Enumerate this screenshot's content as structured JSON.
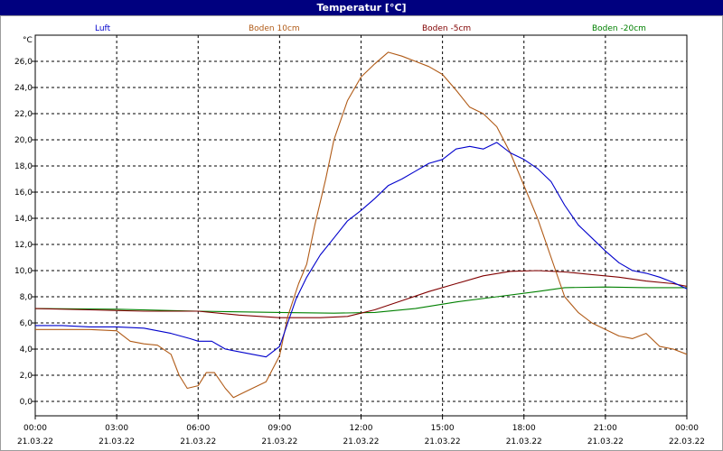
{
  "chart_data": {
    "type": "line",
    "title": "Temperatur [°C]",
    "y_unit_label": "°C",
    "ylim": [
      -1.1,
      28.0
    ],
    "y_ticks": [
      "0,0",
      "2,0",
      "4,0",
      "6,0",
      "8,0",
      "10,0",
      "12,0",
      "14,0",
      "16,0",
      "18,0",
      "20,0",
      "22,0",
      "24,0",
      "26,0"
    ],
    "x_range_hours": [
      0,
      24
    ],
    "x_ticks": [
      {
        "time": "00:00",
        "date": "21.03.22"
      },
      {
        "time": "03:00",
        "date": "21.03.22"
      },
      {
        "time": "06:00",
        "date": "21.03.22"
      },
      {
        "time": "09:00",
        "date": "21.03.22"
      },
      {
        "time": "12:00",
        "date": "21.03.22"
      },
      {
        "time": "15:00",
        "date": "21.03.22"
      },
      {
        "time": "18:00",
        "date": "21.03.22"
      },
      {
        "time": "21:00",
        "date": "21.03.22"
      },
      {
        "time": "00:00",
        "date": "22.03.22"
      }
    ],
    "grid": true,
    "legend_position": "top",
    "series": [
      {
        "name": "Luft",
        "color": "#0000cc",
        "points": [
          [
            0,
            5.8
          ],
          [
            1,
            5.8
          ],
          [
            2,
            5.7
          ],
          [
            3,
            5.7
          ],
          [
            4,
            5.6
          ],
          [
            5,
            5.2
          ],
          [
            5.7,
            4.8
          ],
          [
            6,
            4.6
          ],
          [
            6.5,
            4.6
          ],
          [
            7,
            4.0
          ],
          [
            7.5,
            3.8
          ],
          [
            8,
            3.6
          ],
          [
            8.5,
            3.4
          ],
          [
            9,
            4.2
          ],
          [
            9.3,
            6.0
          ],
          [
            9.6,
            7.8
          ],
          [
            10,
            9.5
          ],
          [
            10.5,
            11.2
          ],
          [
            11,
            12.5
          ],
          [
            11.5,
            13.8
          ],
          [
            12,
            14.6
          ],
          [
            12.5,
            15.5
          ],
          [
            13,
            16.5
          ],
          [
            13.5,
            17.0
          ],
          [
            14,
            17.6
          ],
          [
            14.5,
            18.2
          ],
          [
            15,
            18.5
          ],
          [
            15.5,
            19.3
          ],
          [
            16,
            19.5
          ],
          [
            16.5,
            19.3
          ],
          [
            17,
            19.8
          ],
          [
            17.5,
            19.0
          ],
          [
            18,
            18.5
          ],
          [
            18.5,
            17.8
          ],
          [
            19,
            16.8
          ],
          [
            19.5,
            15.0
          ],
          [
            20,
            13.5
          ],
          [
            20.5,
            12.5
          ],
          [
            21,
            11.5
          ],
          [
            21.5,
            10.6
          ],
          [
            22,
            10.0
          ],
          [
            22.5,
            9.8
          ],
          [
            23,
            9.5
          ],
          [
            23.5,
            9.1
          ],
          [
            24,
            8.6
          ]
        ]
      },
      {
        "name": "Boden 10cm",
        "color": "#b05a16",
        "points": [
          [
            0,
            5.5
          ],
          [
            1,
            5.5
          ],
          [
            2,
            5.5
          ],
          [
            3,
            5.4
          ],
          [
            3.5,
            4.6
          ],
          [
            4,
            4.4
          ],
          [
            4.5,
            4.3
          ],
          [
            5,
            3.6
          ],
          [
            5.3,
            2.0
          ],
          [
            5.6,
            1.0
          ],
          [
            6,
            1.2
          ],
          [
            6.3,
            2.2
          ],
          [
            6.6,
            2.2
          ],
          [
            7,
            1.0
          ],
          [
            7.3,
            0.3
          ],
          [
            7.7,
            0.7
          ],
          [
            8,
            1.0
          ],
          [
            8.5,
            1.5
          ],
          [
            9,
            3.5
          ],
          [
            9.3,
            6.5
          ],
          [
            9.7,
            9.0
          ],
          [
            10,
            10.5
          ],
          [
            10.3,
            13.5
          ],
          [
            10.7,
            17.0
          ],
          [
            11,
            20.0
          ],
          [
            11.5,
            23.0
          ],
          [
            12,
            24.8
          ],
          [
            12.5,
            25.8
          ],
          [
            13,
            26.7
          ],
          [
            13.5,
            26.4
          ],
          [
            14,
            26.0
          ],
          [
            14.5,
            25.6
          ],
          [
            15,
            25.0
          ],
          [
            15.5,
            23.8
          ],
          [
            16,
            22.5
          ],
          [
            16.5,
            22.0
          ],
          [
            17,
            21.0
          ],
          [
            17.5,
            19.0
          ],
          [
            18,
            16.5
          ],
          [
            18.5,
            14.0
          ],
          [
            19,
            11.0
          ],
          [
            19.5,
            8.0
          ],
          [
            20,
            6.8
          ],
          [
            20.5,
            6.0
          ],
          [
            21,
            5.5
          ],
          [
            21.5,
            5.0
          ],
          [
            22,
            4.8
          ],
          [
            22.5,
            5.2
          ],
          [
            23,
            4.2
          ],
          [
            23.5,
            4.0
          ],
          [
            24,
            3.6
          ]
        ]
      },
      {
        "name": "Boden -5cm",
        "color": "#800000",
        "points": [
          [
            0,
            7.1
          ],
          [
            2,
            7.0
          ],
          [
            4,
            6.9
          ],
          [
            6,
            6.9
          ],
          [
            7.5,
            6.6
          ],
          [
            9,
            6.4
          ],
          [
            10.5,
            6.4
          ],
          [
            11.5,
            6.5
          ],
          [
            12.5,
            7.0
          ],
          [
            13.5,
            7.7
          ],
          [
            14.5,
            8.4
          ],
          [
            15.5,
            9.0
          ],
          [
            16.5,
            9.6
          ],
          [
            17.5,
            9.95
          ],
          [
            18.5,
            10.0
          ],
          [
            19.5,
            9.9
          ],
          [
            20.5,
            9.7
          ],
          [
            21.5,
            9.5
          ],
          [
            22.5,
            9.2
          ],
          [
            23.5,
            9.0
          ],
          [
            24,
            8.8
          ]
        ]
      },
      {
        "name": "Boden -20cm",
        "color": "#008000",
        "points": [
          [
            0,
            7.1
          ],
          [
            3,
            7.05
          ],
          [
            6,
            6.9
          ],
          [
            9,
            6.8
          ],
          [
            11,
            6.75
          ],
          [
            12.5,
            6.8
          ],
          [
            14,
            7.1
          ],
          [
            15.5,
            7.6
          ],
          [
            17,
            8.0
          ],
          [
            18.5,
            8.4
          ],
          [
            19.5,
            8.7
          ],
          [
            21,
            8.75
          ],
          [
            22.5,
            8.7
          ],
          [
            24,
            8.7
          ]
        ]
      }
    ]
  }
}
